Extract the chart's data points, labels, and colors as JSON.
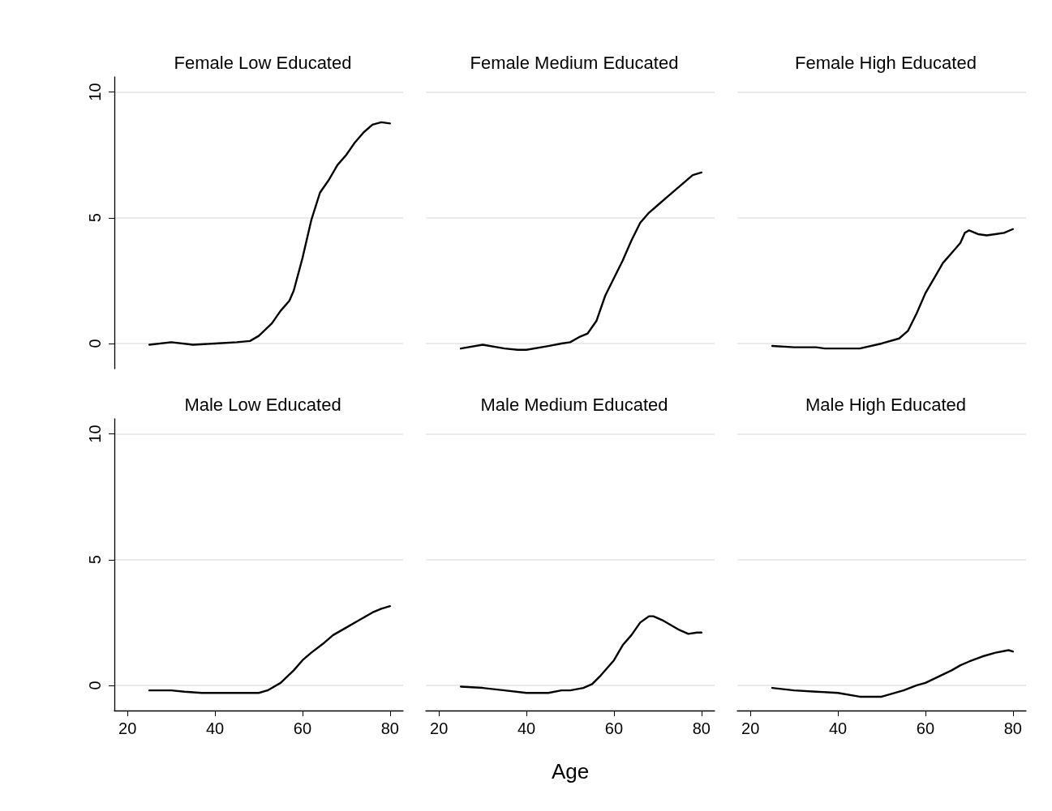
{
  "chart_data": [
    {
      "type": "line",
      "title": "Female Low Educated",
      "color": "#000000",
      "x": [
        25,
        30,
        35,
        40,
        45,
        48,
        50,
        53,
        55,
        57,
        58,
        60,
        62,
        64,
        66,
        68,
        70,
        72,
        74,
        76,
        78,
        80
      ],
      "values": [
        -0.05,
        0.05,
        -0.05,
        0,
        0.05,
        0.1,
        0.3,
        0.8,
        1.3,
        1.7,
        2.1,
        3.4,
        4.9,
        6,
        6.5,
        7.1,
        7.5,
        8,
        8.4,
        8.7,
        8.8,
        8.75
      ],
      "xlim": [
        17,
        83
      ],
      "ylim": [
        -1,
        10.6
      ],
      "xticks": [
        20,
        40,
        60,
        80
      ],
      "yticks": [
        0,
        5,
        10
      ],
      "grid": "y",
      "tick_labels": "y"
    },
    {
      "type": "line",
      "title": "Female Medium Educated",
      "color": "#000000",
      "x": [
        25,
        30,
        35,
        38,
        40,
        45,
        48,
        50,
        52,
        54,
        56,
        58,
        60,
        62,
        64,
        66,
        68,
        70,
        72,
        74,
        76,
        78,
        80
      ],
      "values": [
        -0.2,
        -0.05,
        -0.2,
        -0.25,
        -0.25,
        -0.1,
        0,
        0.05,
        0.25,
        0.4,
        0.9,
        1.9,
        2.6,
        3.3,
        4.1,
        4.8,
        5.2,
        5.5,
        5.8,
        6.1,
        6.4,
        6.7,
        6.8
      ],
      "xlim": [
        17,
        83
      ],
      "xticks": [
        20,
        40,
        60,
        80
      ],
      "yticks": [
        0,
        5,
        10
      ],
      "grid": "y",
      "tick_labels": false
    },
    {
      "type": "line",
      "title": "Female High Educated",
      "color": "#000000",
      "x": [
        25,
        30,
        35,
        37,
        40,
        45,
        50,
        54,
        56,
        58,
        60,
        62,
        64,
        66,
        68,
        69,
        70,
        72,
        74,
        76,
        78,
        80
      ],
      "values": [
        -0.1,
        -0.15,
        -0.15,
        -0.2,
        -0.2,
        -0.2,
        0,
        0.2,
        0.5,
        1.2,
        2,
        2.6,
        3.2,
        3.6,
        4,
        4.4,
        4.5,
        4.35,
        4.3,
        4.35,
        4.4,
        4.55
      ],
      "xlim": [
        17,
        83
      ],
      "xticks": [
        20,
        40,
        60,
        80
      ],
      "yticks": [
        0,
        5,
        10
      ],
      "grid": "y",
      "tick_labels": false
    },
    {
      "type": "line",
      "title": "Male Low Educated",
      "color": "#000000",
      "x": [
        25,
        30,
        33,
        37,
        40,
        45,
        50,
        52,
        55,
        58,
        60,
        62,
        65,
        67,
        70,
        73,
        76,
        78,
        80
      ],
      "values": [
        -0.2,
        -0.2,
        -0.25,
        -0.3,
        -0.3,
        -0.3,
        -0.3,
        -0.2,
        0.1,
        0.6,
        1,
        1.3,
        1.7,
        2,
        2.3,
        2.6,
        2.9,
        3.05,
        3.15
      ],
      "xlim": [
        17,
        83
      ],
      "ylim": [
        -1,
        10.6
      ],
      "xticks": [
        20,
        40,
        60,
        80
      ],
      "yticks": [
        0,
        5,
        10
      ],
      "grid": "y"
    },
    {
      "type": "line",
      "title": "Male Medium Educated",
      "xlabel": "Age",
      "color": "#000000",
      "x": [
        25,
        30,
        35,
        40,
        45,
        48,
        50,
        53,
        55,
        57,
        60,
        62,
        64,
        66,
        68,
        69,
        71,
        73,
        75,
        77,
        79,
        80
      ],
      "values": [
        -0.05,
        -0.1,
        -0.2,
        -0.3,
        -0.3,
        -0.2,
        -0.2,
        -0.1,
        0.05,
        0.4,
        1,
        1.6,
        2,
        2.5,
        2.75,
        2.75,
        2.6,
        2.4,
        2.2,
        2.05,
        2.1,
        2.1
      ],
      "xlim": [
        17,
        83
      ],
      "xticks": [
        20,
        40,
        60,
        80
      ],
      "yticks": [
        0,
        5,
        10
      ],
      "grid": "y",
      "tick_labels": "x"
    },
    {
      "type": "line",
      "title": "Male High Educated",
      "color": "#000000",
      "x": [
        25,
        30,
        35,
        40,
        45,
        50,
        55,
        58,
        60,
        63,
        66,
        68,
        70,
        73,
        76,
        79,
        80
      ],
      "values": [
        -0.1,
        -0.2,
        -0.25,
        -0.3,
        -0.45,
        -0.45,
        -0.2,
        0,
        0.1,
        0.35,
        0.6,
        0.8,
        0.95,
        1.15,
        1.3,
        1.4,
        1.35
      ],
      "xlim": [
        17,
        83
      ],
      "xticks": [
        20,
        40,
        60,
        80
      ],
      "yticks": [
        0,
        5,
        10
      ],
      "grid": "y",
      "tick_labels": "x"
    }
  ]
}
